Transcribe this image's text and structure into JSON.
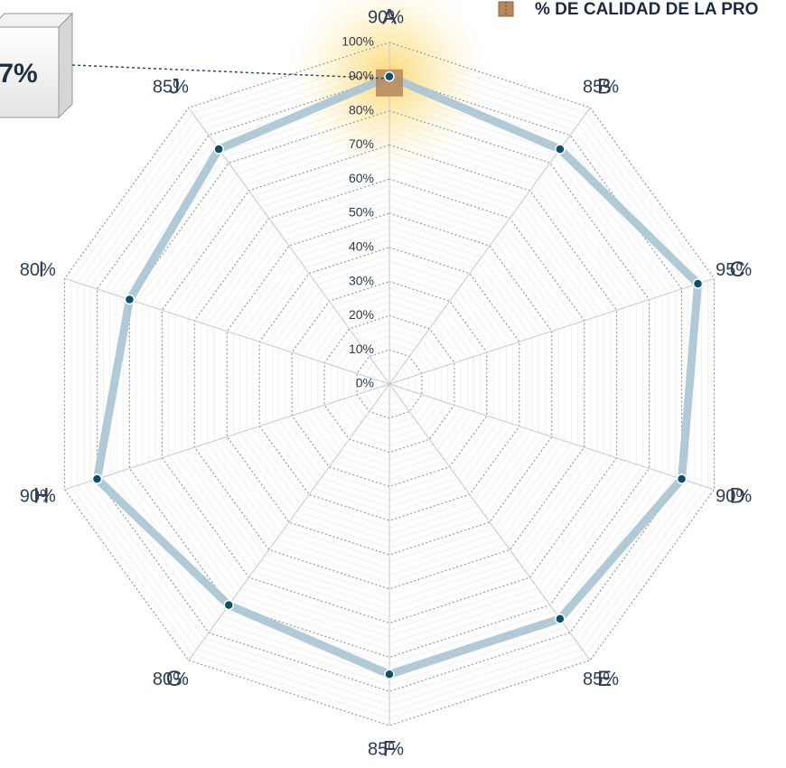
{
  "chart_data": {
    "type": "radar",
    "categories": [
      "A",
      "B",
      "C",
      "D",
      "E",
      "F",
      "G",
      "H",
      "I",
      "J"
    ],
    "series": [
      {
        "name": "% DE CALIDAD DE LA PRO",
        "color": "#a9c4d4",
        "marker_color": "#0e4f6b",
        "values": [
          90,
          85,
          95,
          90,
          85,
          85,
          80,
          90,
          80,
          85
        ],
        "value_labels": [
          "90%",
          "85%",
          "95%",
          "90%",
          "85%",
          "85%",
          "80%",
          "90%",
          "80%",
          "85%"
        ]
      }
    ],
    "ylim": [
      0,
      100
    ],
    "yticks": [
      {
        "value": 0,
        "label": "0%"
      },
      {
        "value": 10,
        "label": "10%"
      },
      {
        "value": 20,
        "label": "20%"
      },
      {
        "value": 30,
        "label": "30%"
      },
      {
        "value": 40,
        "label": "40%"
      },
      {
        "value": 50,
        "label": "50%"
      },
      {
        "value": 60,
        "label": "60%"
      },
      {
        "value": 70,
        "label": "70%"
      },
      {
        "value": 80,
        "label": "80%"
      },
      {
        "value": 90,
        "label": "90%"
      },
      {
        "value": 100,
        "label": "100%"
      }
    ],
    "grid": true,
    "annotations": [
      "7%"
    ]
  }
}
